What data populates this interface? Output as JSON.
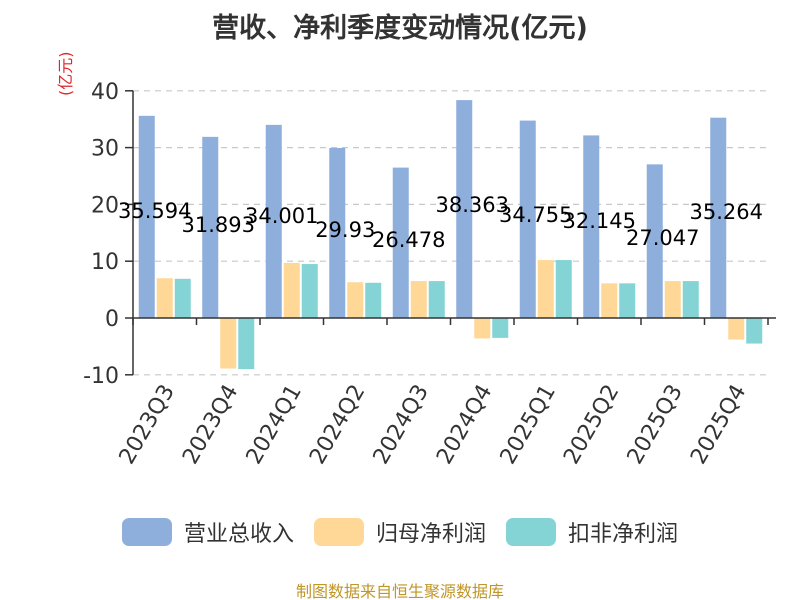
{
  "chart_data": {
    "type": "bar",
    "title": "营收、净利季度变动情况(亿元)",
    "ylabel": "(亿元)",
    "ylim": [
      -10,
      40
    ],
    "yticks": [
      -10,
      0,
      10,
      20,
      30,
      40
    ],
    "grid": true,
    "legend_placement": "bottom",
    "categories": [
      "2023Q3",
      "2023Q4",
      "2024Q1",
      "2024Q2",
      "2024Q3",
      "2024Q4",
      "2025Q1",
      "2025Q2",
      "2025Q3",
      "2025Q4"
    ],
    "series": [
      {
        "name": "营业总收入",
        "color": "#8eaedc",
        "values": [
          35.594,
          31.893,
          34.001,
          29.93,
          26.478,
          38.363,
          34.755,
          32.145,
          27.047,
          35.264
        ],
        "data_labels": [
          "35.594",
          "31.893",
          "34.001",
          "29.93",
          "26.478",
          "38.363",
          "34.755",
          "32.145",
          "27.047",
          "35.264"
        ]
      },
      {
        "name": "归母净利润",
        "color": "#ffd797",
        "values": [
          7.0,
          -8.9,
          9.7,
          6.3,
          6.5,
          -3.6,
          10.2,
          6.1,
          6.5,
          -3.8
        ]
      },
      {
        "name": "扣非净利润",
        "color": "#84d4d6",
        "values": [
          6.9,
          -9.0,
          9.5,
          6.2,
          6.5,
          -3.5,
          10.2,
          6.1,
          6.5,
          -4.5
        ]
      }
    ]
  },
  "footer": {
    "source": "制图数据来自恒生聚源数据库"
  }
}
